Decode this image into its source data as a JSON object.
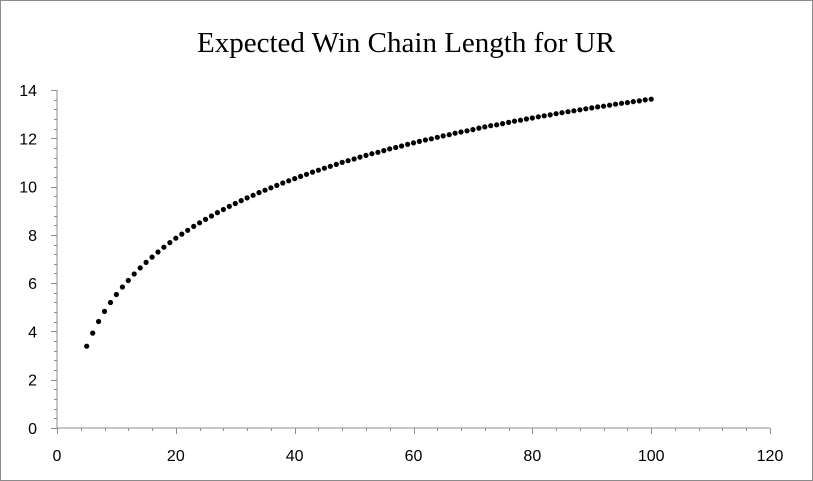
{
  "chart_data": {
    "type": "scatter",
    "title": "Expected Win Chain Length for UR",
    "xlabel": "",
    "ylabel": "",
    "xlim": [
      0,
      120
    ],
    "ylim": [
      0,
      14
    ],
    "x_ticks": [
      0,
      20,
      40,
      60,
      80,
      100,
      120
    ],
    "y_ticks": [
      0,
      2,
      4,
      6,
      8,
      10,
      12,
      14
    ],
    "x_tick_labels": [
      "0",
      "20",
      "40",
      "60",
      "80",
      "100",
      "120"
    ],
    "y_tick_labels": [
      "0",
      "2",
      "4",
      "6",
      "8",
      "10",
      "12",
      "14"
    ],
    "grid": false,
    "legend": "none",
    "marker_color": "#000000",
    "series": [
      {
        "x": [
          5,
          6,
          7,
          8,
          9,
          10,
          11,
          12,
          13,
          14,
          15,
          16,
          17,
          18,
          19,
          20,
          21,
          22,
          23,
          24,
          25,
          26,
          27,
          28,
          29,
          30,
          31,
          32,
          33,
          34,
          35,
          36,
          37,
          38,
          39,
          40,
          41,
          42,
          43,
          44,
          45,
          46,
          47,
          48,
          49,
          50,
          51,
          52,
          53,
          54,
          55,
          56,
          57,
          58,
          59,
          60,
          61,
          62,
          63,
          64,
          65,
          66,
          67,
          68,
          69,
          70,
          71,
          72,
          73,
          74,
          75,
          76,
          77,
          78,
          79,
          80,
          81,
          82,
          83,
          84,
          85,
          86,
          87,
          88,
          89,
          90,
          91,
          92,
          93,
          94,
          95,
          96,
          97,
          98,
          99,
          100
        ],
        "y": [
          3.39,
          3.93,
          4.41,
          4.83,
          5.2,
          5.53,
          5.84,
          6.11,
          6.38,
          6.63,
          6.86,
          7.08,
          7.29,
          7.49,
          7.68,
          7.86,
          8.03,
          8.19,
          8.35,
          8.5,
          8.64,
          8.78,
          8.92,
          9.05,
          9.18,
          9.3,
          9.42,
          9.53,
          9.64,
          9.75,
          9.85,
          9.95,
          10.05,
          10.15,
          10.24,
          10.33,
          10.42,
          10.51,
          10.6,
          10.68,
          10.76,
          10.84,
          10.92,
          11.0,
          11.07,
          11.14,
          11.22,
          11.29,
          11.36,
          11.42,
          11.49,
          11.56,
          11.62,
          11.68,
          11.75,
          11.81,
          11.87,
          11.93,
          11.98,
          12.04,
          12.1,
          12.15,
          12.21,
          12.26,
          12.31,
          12.36,
          12.42,
          12.47,
          12.52,
          12.56,
          12.61,
          12.66,
          12.71,
          12.75,
          12.8,
          12.84,
          12.89,
          12.93,
          12.97,
          13.02,
          13.06,
          13.1,
          13.14,
          13.18,
          13.22,
          13.26,
          13.3,
          13.33,
          13.37,
          13.41,
          13.45,
          13.48,
          13.52,
          13.55,
          13.59,
          13.62
        ]
      }
    ]
  }
}
